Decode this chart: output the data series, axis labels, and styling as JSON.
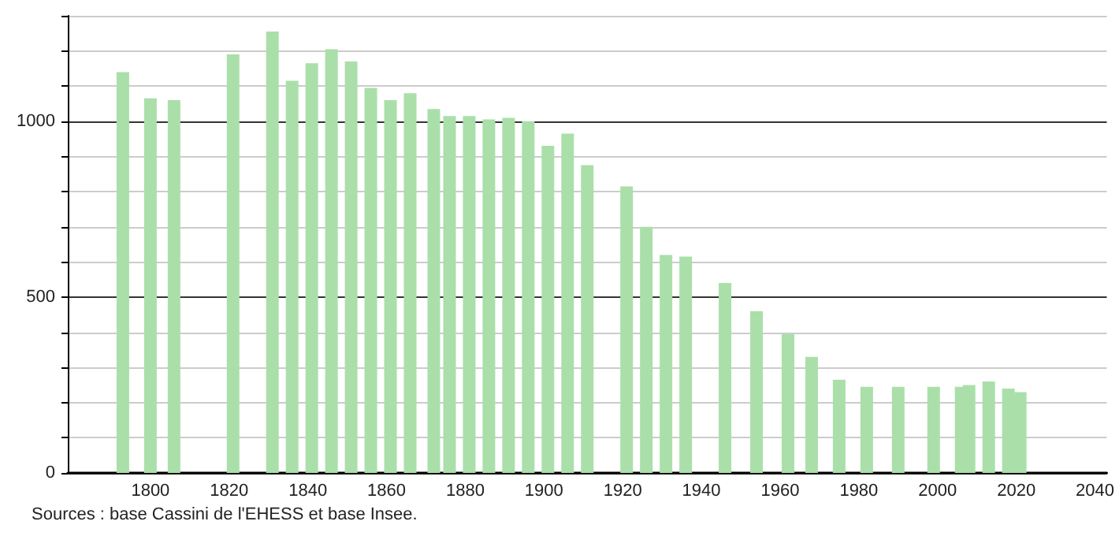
{
  "chart_data": {
    "type": "bar",
    "x": [
      1793,
      1800,
      1806,
      1821,
      1831,
      1836,
      1841,
      1846,
      1851,
      1856,
      1861,
      1866,
      1872,
      1876,
      1881,
      1886,
      1891,
      1896,
      1901,
      1906,
      1911,
      1921,
      1926,
      1931,
      1936,
      1946,
      1954,
      1962,
      1968,
      1975,
      1982,
      1990,
      1999,
      2006,
      2008,
      2013,
      2018,
      2021
    ],
    "values": [
      1140,
      1065,
      1060,
      1190,
      1255,
      1115,
      1165,
      1205,
      1170,
      1095,
      1060,
      1080,
      1035,
      1015,
      1015,
      1005,
      1010,
      1000,
      930,
      965,
      875,
      815,
      700,
      620,
      615,
      540,
      460,
      395,
      330,
      265,
      245,
      245,
      245,
      245,
      250,
      260,
      240,
      230
    ],
    "color": "#aadfaa",
    "xlim": [
      1779,
      2043
    ],
    "xticks": [
      1800,
      1820,
      1840,
      1860,
      1880,
      1900,
      1920,
      1940,
      1960,
      1980,
      2000,
      2020,
      2040
    ],
    "ylim": [
      0,
      1300
    ],
    "yticks": [
      0,
      {
        "value": 100,
        "label": null
      },
      {
        "value": 200,
        "label": null
      },
      {
        "value": 300,
        "label": null
      },
      {
        "value": 400,
        "label": null
      },
      500,
      {
        "value": 600,
        "label": null
      },
      {
        "value": 700,
        "label": null
      },
      {
        "value": 800,
        "label": null
      },
      {
        "value": 900,
        "label": null
      },
      1000,
      {
        "value": 1100,
        "label": null
      },
      {
        "value": 1200,
        "label": null
      },
      {
        "value": 1300,
        "label": null
      }
    ],
    "grid": "y",
    "annotations": [
      "Sources : base Cassini de l'EHESS et base Insee."
    ]
  }
}
